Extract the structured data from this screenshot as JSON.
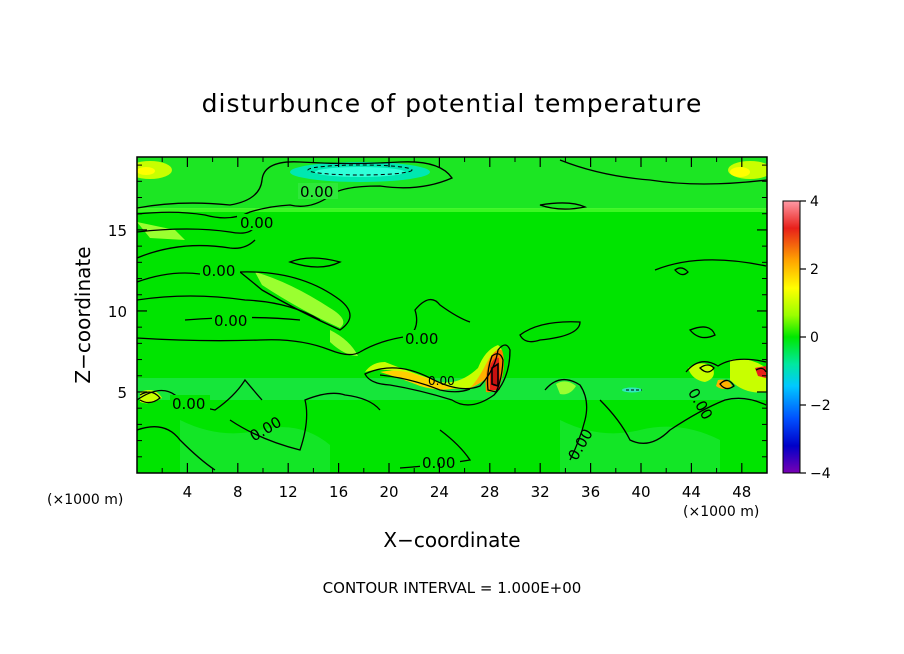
{
  "chart_data": {
    "type": "heatmap",
    "title": "disturbunce of potential temperature",
    "xlabel": "X−coordinate",
    "ylabel": "Z−coordinate",
    "x_unit_left": "(×1000 m)",
    "x_unit_right": "(×1000 m)",
    "footer": "CONTOUR INTERVAL = 1.000E+00",
    "xlim": [
      0,
      50
    ],
    "ylim": [
      0,
      19.5
    ],
    "x_ticks": [
      4,
      8,
      12,
      16,
      20,
      24,
      28,
      32,
      36,
      40,
      44,
      48
    ],
    "y_ticks": [
      5,
      10,
      15
    ],
    "colorbar": {
      "min": -4,
      "max": 4,
      "ticks": [
        4,
        2,
        0,
        -2,
        -4
      ],
      "colors": [
        "#ff9aa6",
        "#e8201a",
        "#ffa500",
        "#ffff00",
        "#9aff00",
        "#00e800",
        "#00e8a0",
        "#00c8ff",
        "#0050ff",
        "#0000c8",
        "#7800b4"
      ]
    },
    "background_value": 0.0,
    "contour_labels": [
      "0.00",
      "0.00",
      "0.00",
      "0.00",
      "0.00",
      "0.00",
      "0.00",
      "0.00",
      "0.00",
      "0.00",
      "0.00"
    ],
    "features": [
      {
        "name": "warm-core",
        "x": 28.5,
        "z": 6.5,
        "value": 3.5
      },
      {
        "name": "warm-band",
        "x": 23,
        "z": 5.8,
        "value": 1.5
      },
      {
        "name": "cold-layer-top",
        "x": 16,
        "z": 18.5,
        "value": -0.8
      },
      {
        "name": "warm-layer-topleft",
        "x": 1,
        "z": 18.5,
        "value": 1.0
      },
      {
        "name": "warm-layer-topright",
        "x": 49,
        "z": 18.5,
        "value": 1.0
      },
      {
        "name": "cold-layer-mid",
        "x": 25,
        "z": 5,
        "value": -0.5
      }
    ]
  }
}
